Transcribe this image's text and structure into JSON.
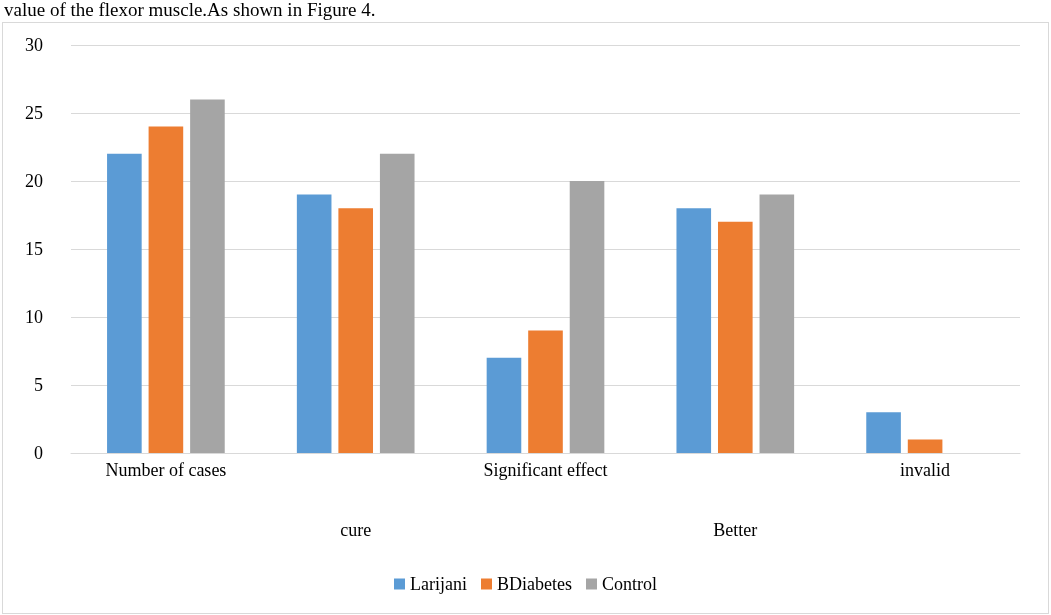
{
  "chart_data": {
    "type": "bar",
    "annotations": [
      "value of the flexor muscle.As shown in Figure 4."
    ],
    "categories": [
      "Number of cases",
      "cure",
      "Significant effect",
      "Better",
      "invalid"
    ],
    "series": [
      {
        "name": "Larijani",
        "color": "#5b9bd5",
        "values": [
          22,
          19,
          7,
          18,
          3
        ]
      },
      {
        "name": "BDiabetes",
        "color": "#ed7d31",
        "values": [
          24,
          18,
          9,
          17,
          1
        ]
      },
      {
        "name": "Control",
        "color": "#a5a5a5",
        "values": [
          26,
          22,
          20,
          19,
          0
        ]
      }
    ],
    "ylim": [
      0,
      30
    ],
    "yticks": [
      0,
      5,
      10,
      15,
      20,
      25,
      30
    ],
    "grid": "y",
    "legend": "bottom"
  }
}
